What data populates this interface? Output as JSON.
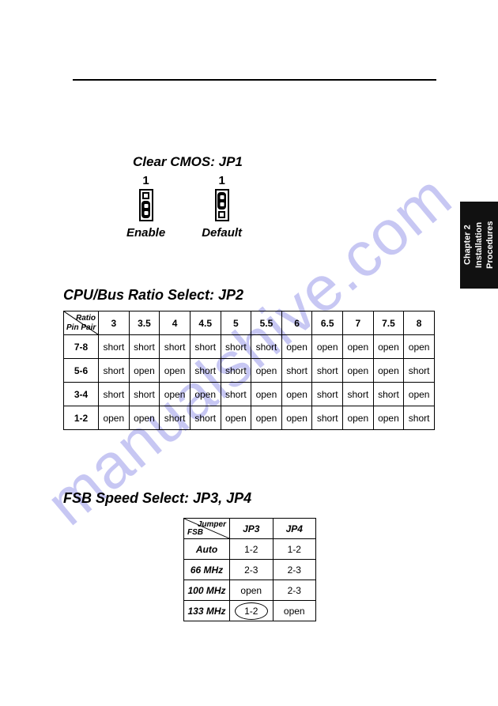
{
  "side_tab": "Chapter 2\nInstallation\nProcedures",
  "watermark": "manualshive.com",
  "jp1": {
    "title": "Clear CMOS: JP1",
    "cols": [
      {
        "pin": "1",
        "caption": "Enable",
        "top_open": true,
        "bottom_pair": true
      },
      {
        "pin": "1",
        "caption": "Default",
        "top_pair": true,
        "bottom_open": true
      }
    ]
  },
  "jp2": {
    "title": "CPU/Bus Ratio Select: JP2",
    "corner_row": "Pin\nPair",
    "corner_col": "Ratio",
    "ratios": [
      "3",
      "3.5",
      "4",
      "4.5",
      "5",
      "5.5",
      "6",
      "6.5",
      "7",
      "7.5",
      "8"
    ],
    "rows": [
      {
        "label": "7-8",
        "cells": [
          "short",
          "short",
          "short",
          "short",
          "short",
          "short",
          "open",
          "open",
          "open",
          "open",
          "open"
        ]
      },
      {
        "label": "5-6",
        "cells": [
          "short",
          "open",
          "open",
          "short",
          "short",
          "open",
          "short",
          "short",
          "open",
          "open",
          "short"
        ]
      },
      {
        "label": "3-4",
        "cells": [
          "short",
          "short",
          "open",
          "open",
          "short",
          "open",
          "open",
          "short",
          "short",
          "short",
          "open"
        ]
      },
      {
        "label": "1-2",
        "cells": [
          "open",
          "open",
          "short",
          "short",
          "open",
          "open",
          "open",
          "short",
          "open",
          "open",
          "short"
        ]
      }
    ]
  },
  "jp34": {
    "title": "FSB Speed Select: JP3, JP4",
    "corner_row": "FSB",
    "corner_col": "Jumper",
    "cols": [
      "JP3",
      "JP4"
    ],
    "rows": [
      {
        "label": "Auto",
        "cells": [
          "1-2",
          "1-2"
        ],
        "circle": [
          false,
          false
        ]
      },
      {
        "label": "66 MHz",
        "cells": [
          "2-3",
          "2-3"
        ],
        "circle": [
          false,
          false
        ]
      },
      {
        "label": "100 MHz",
        "cells": [
          "open",
          "2-3"
        ],
        "circle": [
          false,
          false
        ]
      },
      {
        "label": "133 MHz",
        "cells": [
          "1-2",
          "open"
        ],
        "circle": [
          true,
          false
        ]
      }
    ]
  },
  "colors": {
    "text": "#000000",
    "background": "#ffffff",
    "watermark": "rgba(95,95,220,0.35)",
    "side_tab_bg": "#111111",
    "side_tab_fg": "#ffffff"
  }
}
